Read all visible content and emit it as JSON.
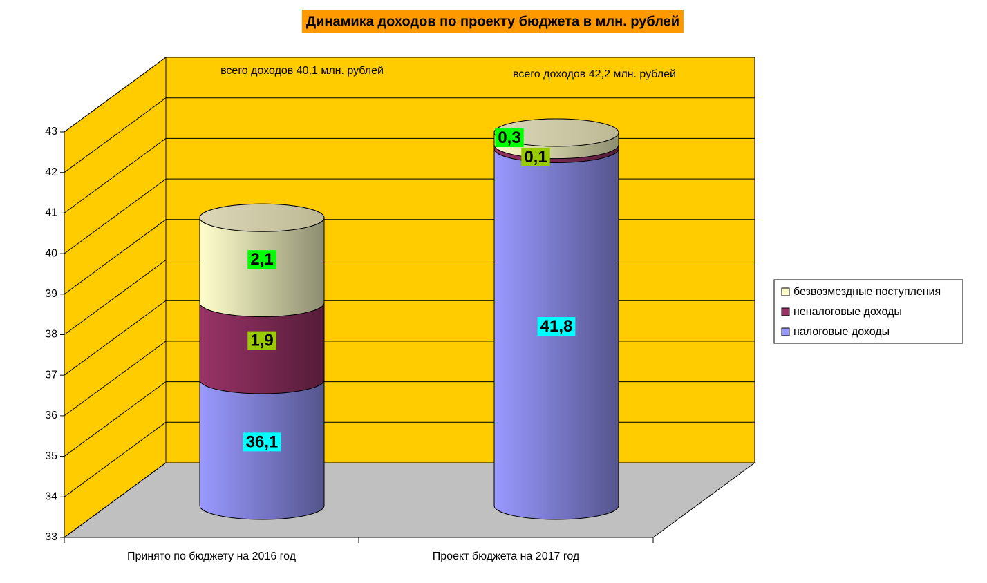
{
  "chart_data": {
    "type": "bar3d-cylinder-stacked",
    "title": "Динамика доходов по проекту бюджета в млн. рублей",
    "categories": [
      "Принято по бюджету на 2016 год",
      "Проект бюджета на 2017 год"
    ],
    "series": [
      {
        "name": "налоговые доходы",
        "color": "#9999ff",
        "label_color": "#00ffff",
        "values": [
          36.1,
          41.8
        ],
        "value_labels": [
          "36,1",
          "41,8"
        ]
      },
      {
        "name": "неналоговые доходы",
        "color": "#993366",
        "label_color": "#99cc00",
        "values": [
          1.9,
          0.1
        ],
        "value_labels": [
          "1,9",
          "0,1"
        ]
      },
      {
        "name": "безвозмездные поступления",
        "color": "#ffffcc",
        "label_color": "#00ff00",
        "values": [
          2.1,
          0.3
        ],
        "value_labels": [
          "2,1",
          "0,3"
        ]
      }
    ],
    "annotations": [
      "всего доходов 40,1 млн. рублей",
      "всего доходов 42,2 млн. рублей"
    ],
    "ylim": [
      33,
      43
    ],
    "yticks": [
      33,
      34,
      35,
      36,
      37,
      38,
      39,
      40,
      41,
      42,
      43
    ],
    "grid": true,
    "legend": "right",
    "wall_color": "#ffcc00",
    "floor_color": "#c0c0c0",
    "title_background": "#ff9900"
  }
}
